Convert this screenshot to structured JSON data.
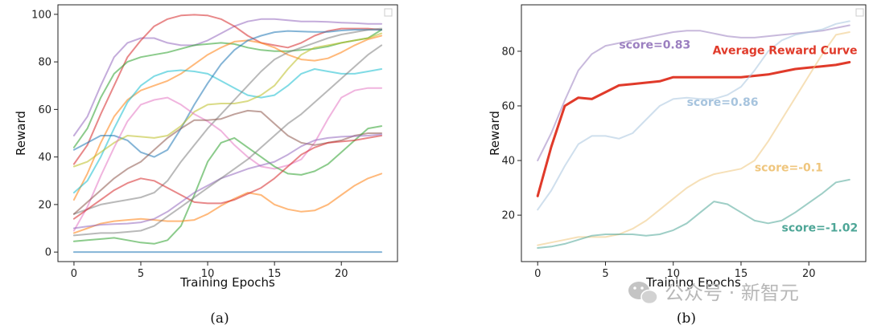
{
  "chart_data": [
    {
      "type": "line",
      "panel": "(a)",
      "xlabel": "Training Epochs",
      "ylabel": "Reward",
      "xlim": [
        -1.2,
        24.2
      ],
      "ylim": [
        -4,
        104
      ],
      "xticks": [
        0,
        5,
        10,
        15,
        20
      ],
      "yticks": [
        0,
        20,
        40,
        60,
        80,
        100
      ],
      "legend": "top-right (empty)",
      "grid": false,
      "x": [
        0,
        1,
        2,
        3,
        4,
        5,
        6,
        7,
        8,
        9,
        10,
        11,
        12,
        13,
        14,
        15,
        16,
        17,
        18,
        19,
        20,
        21,
        22,
        23
      ],
      "series": [
        {
          "color": "#9467bd",
          "values": [
            49,
            57,
            70,
            82,
            88,
            90,
            90,
            88,
            87,
            87,
            89,
            92,
            95,
            97,
            98,
            98,
            97.5,
            97,
            97,
            96.8,
            96.5,
            96.3,
            96,
            96
          ]
        },
        {
          "color": "#d62728",
          "values": [
            37,
            45,
            58,
            70,
            82,
            89,
            95,
            98,
            99.5,
            99.8,
            99.5,
            98,
            95,
            91,
            88,
            87,
            86,
            88,
            91,
            93,
            94,
            94,
            94,
            93.5
          ]
        },
        {
          "color": "#2ca02c",
          "values": [
            44,
            52,
            65,
            75,
            80,
            82,
            83,
            84,
            85.5,
            87,
            87.5,
            88,
            87.5,
            86,
            85,
            84.5,
            84.5,
            85,
            85.5,
            86.5,
            88,
            89,
            90,
            93.5
          ]
        },
        {
          "color": "#ff7f0e",
          "values": [
            22,
            33,
            46,
            57,
            64,
            68,
            70,
            72,
            75,
            79,
            83,
            86,
            88.5,
            89,
            88,
            86,
            83,
            81,
            80.5,
            81.5,
            84,
            87,
            89.5,
            91
          ]
        },
        {
          "color": "#17becf",
          "values": [
            25,
            30,
            40,
            52,
            63,
            70,
            74,
            76,
            76.5,
            76,
            75,
            72,
            69,
            66,
            65,
            66,
            70,
            75,
            77,
            76,
            75,
            75,
            76,
            77
          ]
        },
        {
          "color": "#1f77b4",
          "values": [
            43,
            46,
            49,
            49,
            47,
            42,
            40,
            43,
            52,
            62,
            71,
            79,
            85,
            89,
            91,
            92.5,
            93,
            92.8,
            92.6,
            92.6,
            93.2,
            93.5,
            93.5,
            93.5
          ]
        },
        {
          "color": "#bcbd22",
          "values": [
            36,
            38,
            42,
            46,
            49,
            48.5,
            48,
            49,
            53,
            59,
            62,
            62.5,
            62.5,
            63.5,
            66,
            70,
            77,
            83,
            86,
            87,
            88,
            89,
            90,
            92
          ]
        },
        {
          "color": "#7f7f7f",
          "values": [
            16,
            18,
            20,
            21,
            22,
            23,
            25,
            30,
            38,
            45,
            52,
            58,
            64,
            70,
            76,
            81,
            84,
            86,
            88,
            90,
            91.5,
            92.5,
            93.5,
            94
          ]
        },
        {
          "color": "#e377c2",
          "values": [
            9,
            19,
            32,
            44,
            55,
            62,
            64,
            65,
            62,
            58,
            55,
            51,
            45,
            40,
            36,
            35,
            36.5,
            39,
            46,
            56,
            65,
            68,
            69,
            69
          ]
        },
        {
          "color": "#8c564b",
          "values": [
            16,
            21,
            26,
            31,
            35,
            38,
            43,
            48,
            52,
            55.5,
            55.5,
            56,
            58,
            59.5,
            59,
            54,
            49,
            46,
            45,
            46,
            47,
            49,
            50,
            50
          ]
        },
        {
          "color": "#2ca02c",
          "values": [
            4.5,
            5,
            5.5,
            6,
            5,
            4,
            3.5,
            5,
            11,
            24,
            38,
            46,
            48,
            44,
            40,
            36,
            33,
            32.5,
            34,
            37,
            42,
            47,
            52,
            53
          ]
        },
        {
          "color": "#ff7f0e",
          "values": [
            8,
            10,
            12,
            13,
            13.5,
            14,
            13.5,
            13,
            13,
            13.5,
            16,
            19.5,
            22.5,
            25,
            24,
            20,
            18,
            17,
            17.5,
            20,
            24,
            28,
            31,
            33
          ]
        },
        {
          "color": "#d62728",
          "values": [
            14,
            18,
            22,
            26,
            29,
            31,
            30,
            27,
            24,
            21,
            20.5,
            20.5,
            22,
            24.5,
            27,
            31,
            36,
            41,
            44,
            46,
            46.5,
            47,
            48,
            49
          ]
        },
        {
          "color": "#9467bd",
          "values": [
            10,
            10.8,
            11.5,
            11.8,
            12,
            12.5,
            14,
            17,
            21,
            25,
            28,
            31,
            33,
            35,
            36.5,
            38,
            41,
            44.5,
            47,
            48,
            48.5,
            48.8,
            49,
            49.5
          ]
        },
        {
          "color": "#7f7f7f",
          "values": [
            7,
            7.5,
            8,
            8,
            8.5,
            9,
            11,
            15,
            19,
            23,
            27,
            31,
            35,
            39,
            44,
            49,
            54,
            58,
            63,
            68,
            73,
            78,
            83,
            87
          ]
        },
        {
          "color": "#1f77b4",
          "values": [
            0,
            0,
            0,
            0,
            0,
            0,
            0,
            0,
            0,
            0,
            0,
            0,
            0,
            0,
            0,
            0,
            0,
            0,
            0,
            0,
            0,
            0,
            0,
            0
          ]
        }
      ]
    },
    {
      "type": "line",
      "panel": "(b)",
      "xlabel": "Training Epochs",
      "ylabel": "Reward",
      "xlim": [
        -1.2,
        24.2
      ],
      "ylim": [
        3,
        97
      ],
      "xticks": [
        0,
        5,
        10,
        15,
        20
      ],
      "yticks": [
        20,
        40,
        60,
        80
      ],
      "legend": "top-right (empty)",
      "grid": false,
      "x": [
        0,
        1,
        2,
        3,
        4,
        5,
        6,
        7,
        8,
        9,
        10,
        11,
        12,
        13,
        14,
        15,
        16,
        17,
        18,
        19,
        20,
        21,
        22,
        23
      ],
      "series": [
        {
          "color": "#9b7fc0",
          "values": [
            40,
            50,
            62,
            73,
            79,
            82,
            83,
            84,
            85,
            86,
            87,
            87.5,
            87.5,
            86.5,
            85.5,
            85,
            85,
            85.5,
            86,
            86.5,
            87,
            87.5,
            88.5,
            89.5
          ]
        },
        {
          "color": "#e03a2a",
          "width": 3,
          "name": "Average Reward Curve",
          "values": [
            27,
            45,
            60,
            63,
            62.5,
            65,
            67.5,
            68,
            68.5,
            69,
            70.5,
            70.5,
            70.5,
            70.5,
            70.5,
            70.5,
            71,
            71.5,
            72.5,
            73.5,
            74,
            74.5,
            75,
            76
          ]
        },
        {
          "color": "#a7c4de",
          "values": [
            22,
            29,
            38,
            46,
            49,
            49,
            48,
            50,
            55,
            60,
            62.5,
            63,
            62.5,
            62.5,
            64,
            67,
            73,
            80,
            84,
            86,
            87,
            88,
            90,
            91
          ]
        },
        {
          "color": "#efc67e",
          "values": [
            9,
            10,
            11,
            12,
            12,
            12,
            13,
            15,
            18,
            22,
            26,
            30,
            33,
            35,
            36,
            37,
            40,
            47,
            55,
            63,
            71,
            79,
            86,
            87
          ]
        },
        {
          "color": "#4ea697",
          "values": [
            8,
            8.5,
            9.5,
            11,
            12.5,
            13,
            13,
            13,
            12.5,
            13,
            14.5,
            17,
            21,
            25,
            24,
            21,
            18,
            17,
            18,
            21,
            24.5,
            28,
            32,
            33
          ]
        }
      ],
      "annotations": [
        {
          "text": "score=0.83",
          "color": "#9b7fc0",
          "x": 6,
          "y": 81
        },
        {
          "text": "Average Reward Curve",
          "color": "#e03a2a",
          "x": 12.9,
          "y": 79
        },
        {
          "text": "score=0.86",
          "color": "#a7c4de",
          "x": 11,
          "y": 60
        },
        {
          "text": "score=-0.1",
          "color": "#efc67e",
          "x": 16,
          "y": 36
        },
        {
          "text": "score=-1.02",
          "color": "#4ea697",
          "x": 18,
          "y": 14
        }
      ]
    }
  ],
  "captions": {
    "a": "(a)",
    "b": "(b)"
  },
  "watermark": "公众号 · 新智元"
}
